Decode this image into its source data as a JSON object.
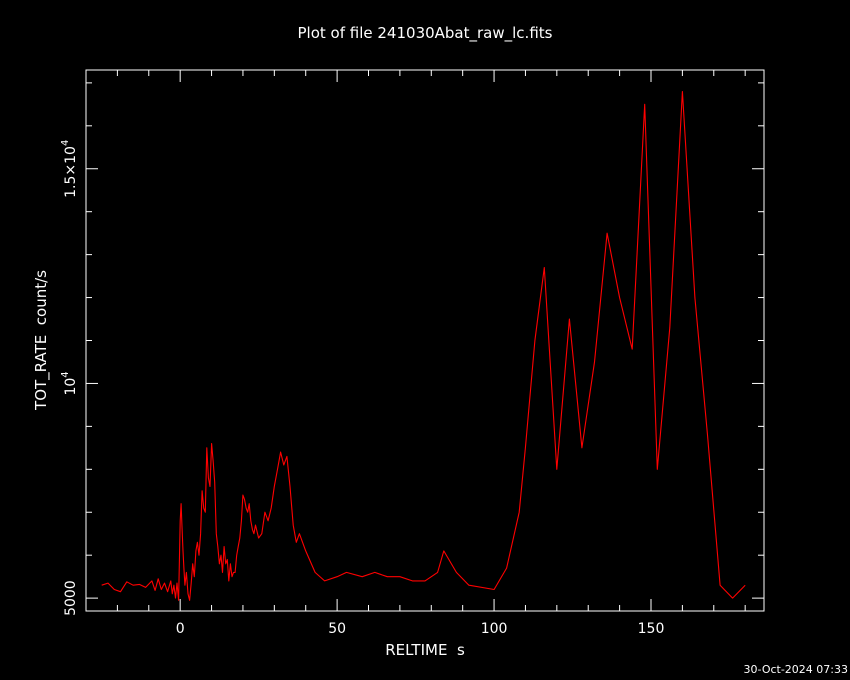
{
  "chart_data": {
    "type": "line",
    "title": "Plot of file 241030Abat_raw_lc.fits",
    "xlabel": "RELTIME  s",
    "ylabel": "TOT_RATE  count/s",
    "timestamp": "30-Oct-2024 07:33",
    "xlim": [
      -30,
      186
    ],
    "ylim": [
      4700,
      17300
    ],
    "x_ticks": [
      {
        "value": 0,
        "label": "0"
      },
      {
        "value": 50,
        "label": "50"
      },
      {
        "value": 100,
        "label": "100"
      },
      {
        "value": 150,
        "label": "150"
      }
    ],
    "y_ticks": [
      {
        "value": 5000,
        "label": "5000",
        "exp": ""
      },
      {
        "value": 10000,
        "label": "10",
        "exp": "4"
      },
      {
        "value": 15000,
        "label": "1.5×10",
        "exp": "4"
      }
    ],
    "line_color": "#ff0000",
    "grid": false,
    "series": [
      {
        "x": [
          -25,
          -23,
          -21,
          -19,
          -17,
          -15,
          -13,
          -11,
          -9,
          -8,
          -7,
          -6,
          -5,
          -4,
          -3,
          -2.5,
          -2,
          -1.5,
          -1,
          -0.5,
          0,
          0.3,
          0.6,
          0.9,
          1.2,
          1.5,
          2,
          2.5,
          3,
          3.5,
          4,
          4.5,
          5,
          5.5,
          6,
          6.5,
          7,
          7.5,
          8,
          8.5,
          9,
          9.5,
          10,
          10.5,
          11,
          11.5,
          12,
          12.5,
          13,
          13.5,
          14,
          14.5,
          15,
          15.5,
          16,
          16.5,
          17,
          17.5,
          18,
          18.5,
          19,
          19.5,
          20,
          20.5,
          21,
          21.5,
          22,
          22.5,
          23,
          23.5,
          24,
          25,
          26,
          27,
          28,
          29,
          30,
          31,
          32,
          33,
          34,
          35,
          36,
          37,
          38,
          40,
          43,
          46,
          50,
          53,
          58,
          62,
          66,
          70,
          74,
          78,
          82,
          84,
          88,
          92,
          100,
          104,
          108,
          110,
          113,
          116,
          120,
          124,
          128,
          132,
          136,
          140,
          144,
          148,
          152,
          156,
          160,
          164,
          168,
          172,
          176,
          180
        ],
        "y": [
          5300,
          5350,
          5200,
          5150,
          5380,
          5300,
          5320,
          5250,
          5400,
          5180,
          5450,
          5200,
          5350,
          5150,
          5400,
          5100,
          5300,
          5000,
          5350,
          4950,
          6800,
          7200,
          6600,
          6100,
          5700,
          5300,
          5600,
          5100,
          4950,
          5350,
          5800,
          5500,
          6100,
          6300,
          6000,
          6500,
          7500,
          7100,
          7000,
          8500,
          7800,
          7600,
          8600,
          8200,
          7700,
          6500,
          6200,
          5800,
          6000,
          5600,
          6200,
          5800,
          5900,
          5400,
          5800,
          5500,
          5600,
          5600,
          6000,
          6200,
          6400,
          6800,
          7400,
          7300,
          7100,
          7000,
          7200,
          6800,
          6600,
          6500,
          6700,
          6400,
          6500,
          7000,
          6800,
          7100,
          7600,
          8000,
          8400,
          8100,
          8300,
          7600,
          6700,
          6300,
          6500,
          6100,
          5600,
          5400,
          5500,
          5600,
          5500,
          5600,
          5500,
          5500,
          5400,
          5400,
          5600,
          6100,
          5600,
          5300,
          5200,
          5700,
          7000,
          8500,
          11000,
          12700,
          8000,
          11500,
          8500,
          10500,
          13500,
          12000,
          10800,
          16500,
          8000,
          11300,
          16800,
          12000,
          8800,
          5300,
          5000,
          5300
        ]
      }
    ]
  }
}
